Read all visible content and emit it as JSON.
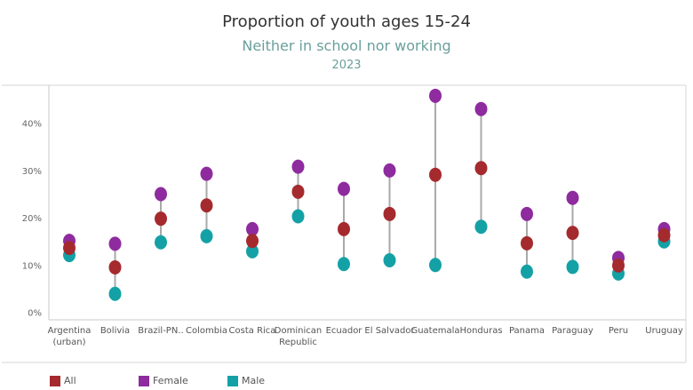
{
  "colors": {
    "all": "#A52A2E",
    "female": "#8E2B9E",
    "male": "#14A1A6",
    "subtitle": "#6A9F9C",
    "connector": "#A9A9A9"
  },
  "legend": [
    {
      "label": "All",
      "color": "#A52A2E"
    },
    {
      "label": "Female",
      "color": "#8E2B9E"
    },
    {
      "label": "Male",
      "color": "#14A1A6"
    }
  ],
  "chart_data": {
    "type": "scatter",
    "title": "Proportion of youth ages 15-24",
    "subtitle": "Neither in school nor working",
    "year": "2023",
    "xlabel": "",
    "ylabel": "",
    "ylim": [
      0,
      48
    ],
    "yticks": [
      "0%",
      "10%",
      "20%",
      "30%",
      "40%"
    ],
    "ytick_values": [
      0,
      10,
      20,
      30,
      40
    ],
    "grid": false,
    "legend_position": "bottom",
    "categories": [
      [
        "Argentina",
        "(urban)"
      ],
      [
        "Bolivia"
      ],
      [
        "Brazil-PN.."
      ],
      [
        "Colombia"
      ],
      [
        "Costa Rica"
      ],
      [
        "Dominican",
        "Republic"
      ],
      [
        "Ecuador"
      ],
      [
        "El Salvador"
      ],
      [
        "Guatemala"
      ],
      [
        "Honduras"
      ],
      [
        "Panama"
      ],
      [
        "Paraguay"
      ],
      [
        "Peru"
      ],
      [
        "Uruguay"
      ]
    ],
    "series": [
      {
        "name": "Female",
        "color": "#8E2B9E",
        "values": [
          15.1,
          14.5,
          25.0,
          29.3,
          17.6,
          30.8,
          26.1,
          30.0,
          45.8,
          43.0,
          20.8,
          24.2,
          11.5,
          17.6
        ]
      },
      {
        "name": "All",
        "color": "#A52A2E",
        "values": [
          13.6,
          9.5,
          19.8,
          22.6,
          15.1,
          25.5,
          17.6,
          20.8,
          29.1,
          30.5,
          14.6,
          16.8,
          9.9,
          16.3
        ]
      },
      {
        "name": "Male",
        "color": "#14A1A6",
        "values": [
          12.1,
          3.9,
          14.8,
          16.1,
          12.9,
          20.3,
          10.2,
          11.0,
          10.0,
          18.1,
          8.6,
          9.6,
          8.2,
          15.0
        ]
      }
    ]
  }
}
